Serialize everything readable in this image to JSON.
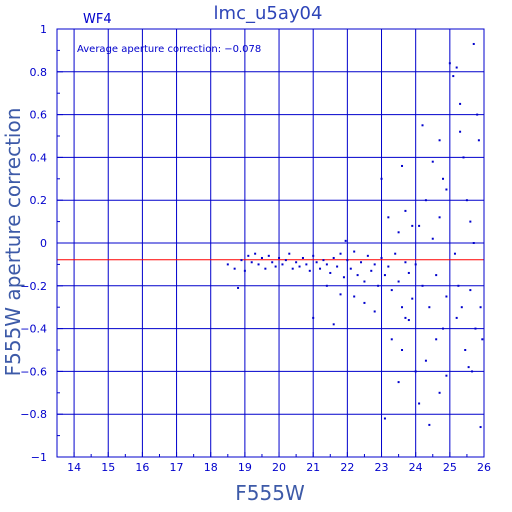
{
  "chart_data": {
    "type": "scatter",
    "title": "lmc_u5ay04",
    "panel_label": "WF4",
    "xlabel": "F555W",
    "ylabel": "F555W aperture correction",
    "annotation": "Average aperture correction: −0.078",
    "average_correction": -0.078,
    "xlim": [
      13.5,
      26
    ],
    "ylim": [
      -1,
      1
    ],
    "xticks": [
      "14",
      "15",
      "16",
      "17",
      "18",
      "19",
      "20",
      "21",
      "22",
      "23",
      "24",
      "25",
      "26"
    ],
    "yticks": [
      "−1",
      "−0.8",
      "−0.6",
      "−0.4",
      "−0.2",
      "0",
      "0.2",
      "0.4",
      "0.6",
      "0.8",
      "1"
    ],
    "xtick_values": [
      14,
      15,
      16,
      17,
      18,
      19,
      20,
      21,
      22,
      23,
      24,
      25,
      26
    ],
    "ytick_values": [
      -1,
      -0.8,
      -0.6,
      -0.4,
      -0.2,
      0,
      0.2,
      0.4,
      0.6,
      0.8,
      1
    ],
    "grid": true,
    "colors": {
      "axis": "#0000cc",
      "points": "#0000cc",
      "average_line": "#ff0000",
      "title": "#2e45b8",
      "axis_title": "#3d5aa8"
    },
    "points": [
      [
        18.5,
        -0.1
      ],
      [
        18.7,
        -0.12
      ],
      [
        18.8,
        -0.21
      ],
      [
        18.9,
        -0.08
      ],
      [
        19.0,
        -0.13
      ],
      [
        19.1,
        -0.06
      ],
      [
        19.2,
        -0.09
      ],
      [
        19.3,
        -0.05
      ],
      [
        19.4,
        -0.1
      ],
      [
        19.5,
        -0.07
      ],
      [
        19.6,
        -0.12
      ],
      [
        19.7,
        -0.06
      ],
      [
        19.8,
        -0.09
      ],
      [
        19.9,
        -0.11
      ],
      [
        20.0,
        -0.07
      ],
      [
        20.1,
        -0.1
      ],
      [
        20.2,
        -0.08
      ],
      [
        20.3,
        -0.05
      ],
      [
        20.4,
        -0.12
      ],
      [
        20.5,
        -0.09
      ],
      [
        20.6,
        -0.11
      ],
      [
        20.7,
        -0.07
      ],
      [
        20.8,
        -0.1
      ],
      [
        20.9,
        -0.13
      ],
      [
        21.0,
        -0.06
      ],
      [
        21.1,
        -0.09
      ],
      [
        21.2,
        -0.12
      ],
      [
        21.0,
        -0.35
      ],
      [
        21.3,
        -0.08
      ],
      [
        21.4,
        -0.1
      ],
      [
        21.5,
        -0.14
      ],
      [
        21.6,
        -0.07
      ],
      [
        21.7,
        -0.11
      ],
      [
        21.8,
        -0.05
      ],
      [
        21.9,
        -0.16
      ],
      [
        21.4,
        -0.2
      ],
      [
        21.6,
        -0.38
      ],
      [
        21.8,
        -0.24
      ],
      [
        21.95,
        0.01
      ],
      [
        22.0,
        -0.08
      ],
      [
        22.1,
        -0.12
      ],
      [
        22.2,
        -0.04
      ],
      [
        22.3,
        -0.15
      ],
      [
        22.4,
        -0.09
      ],
      [
        22.5,
        -0.18
      ],
      [
        22.6,
        -0.06
      ],
      [
        22.7,
        -0.13
      ],
      [
        22.8,
        -0.1
      ],
      [
        22.9,
        -0.2
      ],
      [
        22.2,
        -0.25
      ],
      [
        22.5,
        -0.28
      ],
      [
        22.8,
        -0.32
      ],
      [
        23.0,
        -0.07
      ],
      [
        23.1,
        -0.15
      ],
      [
        23.2,
        -0.11
      ],
      [
        23.3,
        -0.22
      ],
      [
        23.4,
        -0.05
      ],
      [
        23.5,
        -0.18
      ],
      [
        23.6,
        -0.3
      ],
      [
        23.7,
        -0.09
      ],
      [
        23.8,
        -0.14
      ],
      [
        23.9,
        -0.26
      ],
      [
        23.0,
        0.3
      ],
      [
        23.2,
        0.12
      ],
      [
        23.3,
        -0.45
      ],
      [
        23.5,
        0.05
      ],
      [
        23.6,
        -0.5
      ],
      [
        23.7,
        0.15
      ],
      [
        23.8,
        -0.36
      ],
      [
        23.9,
        0.08
      ],
      [
        23.1,
        -0.82
      ],
      [
        23.5,
        -0.65
      ],
      [
        23.6,
        0.36
      ],
      [
        23.7,
        -0.35
      ],
      [
        24.0,
        -0.1
      ],
      [
        24.1,
        0.08
      ],
      [
        24.2,
        -0.2
      ],
      [
        24.3,
        0.2
      ],
      [
        24.4,
        -0.3
      ],
      [
        24.5,
        0.02
      ],
      [
        24.6,
        -0.15
      ],
      [
        24.7,
        0.12
      ],
      [
        24.8,
        -0.4
      ],
      [
        24.9,
        0.25
      ],
      [
        24.0,
        -0.6
      ],
      [
        24.2,
        0.55
      ],
      [
        24.3,
        -0.55
      ],
      [
        24.5,
        0.38
      ],
      [
        24.6,
        -0.45
      ],
      [
        24.7,
        0.48
      ],
      [
        24.8,
        0.3
      ],
      [
        24.9,
        -0.25
      ],
      [
        24.1,
        -0.75
      ],
      [
        24.4,
        -0.85
      ],
      [
        24.7,
        -0.7
      ],
      [
        24.9,
        -0.62
      ],
      [
        25.0,
        0.84
      ],
      [
        25.1,
        0.78
      ],
      [
        25.15,
        -0.05
      ],
      [
        25.2,
        0.82
      ],
      [
        25.25,
        -0.2
      ],
      [
        25.3,
        0.65
      ],
      [
        25.35,
        -0.3
      ],
      [
        25.4,
        0.4
      ],
      [
        25.45,
        -0.5
      ],
      [
        25.5,
        0.2
      ],
      [
        25.55,
        -0.58
      ],
      [
        25.6,
        0.1
      ],
      [
        25.65,
        -0.6
      ],
      [
        25.7,
        0.0
      ],
      [
        25.75,
        -0.4
      ],
      [
        25.8,
        0.6
      ],
      [
        25.85,
        0.48
      ],
      [
        25.9,
        -0.3
      ],
      [
        25.95,
        -0.45
      ],
      [
        25.7,
        0.93
      ],
      [
        25.9,
        -0.86
      ],
      [
        25.6,
        -0.22
      ],
      [
        25.3,
        0.52
      ],
      [
        25.2,
        -0.35
      ]
    ]
  }
}
